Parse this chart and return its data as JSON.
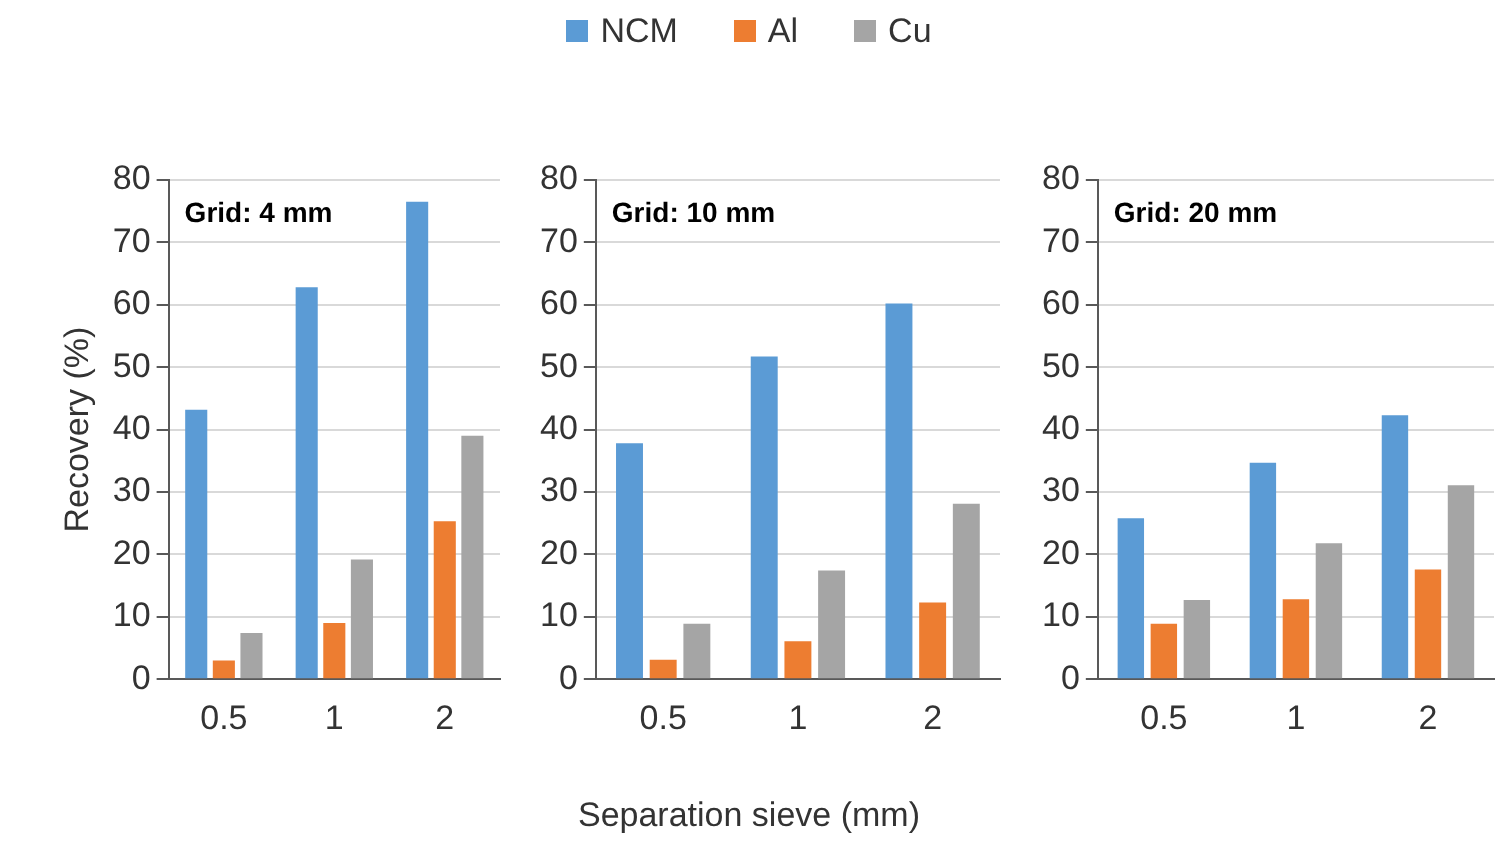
{
  "chart_data": [
    {
      "type": "bar",
      "ylabel": "Recovery (%)",
      "annotations": [
        "Grid: 4 mm"
      ],
      "categories": [
        "0.5",
        "1",
        "2"
      ],
      "ylim": [
        0,
        80
      ],
      "yticks": [
        0,
        10,
        20,
        30,
        40,
        50,
        60,
        70,
        80
      ],
      "grid": "y",
      "legend": "top",
      "series": [
        {
          "name": "NCM",
          "color": "#5b9bd5",
          "values": [
            43.2,
            62.8,
            76.5
          ]
        },
        {
          "name": "Al",
          "color": "#ed7d31",
          "values": [
            3,
            9,
            25.3
          ]
        },
        {
          "name": "Cu",
          "color": "#a5a5a5",
          "values": [
            7.4,
            19.2,
            39
          ]
        }
      ]
    },
    {
      "type": "bar",
      "xlabel": "Separation sieve (mm)",
      "annotations": [
        "Grid: 10 mm"
      ],
      "categories": [
        "0.5",
        "1",
        "2"
      ],
      "ylim": [
        0,
        80
      ],
      "yticks": [
        0,
        10,
        20,
        30,
        40,
        50,
        60,
        70,
        80
      ],
      "grid": "y",
      "series": [
        {
          "color": "#5b9bd5",
          "values": [
            37.8,
            51.7,
            60.2
          ]
        },
        {
          "color": "#ed7d31",
          "values": [
            3.1,
            6.1,
            12.3
          ]
        },
        {
          "color": "#a5a5a5",
          "values": [
            8.9,
            17.4,
            28.1
          ]
        }
      ]
    },
    {
      "type": "bar",
      "annotations": [
        "Grid: 20 mm"
      ],
      "categories": [
        "0.5",
        "1",
        "2"
      ],
      "ylim": [
        0,
        80
      ],
      "yticks": [
        0,
        10,
        20,
        30,
        40,
        50,
        60,
        70,
        80
      ],
      "grid": "y",
      "series": [
        {
          "color": "#5b9bd5",
          "values": [
            25.8,
            34.7,
            42.3
          ]
        },
        {
          "color": "#ed7d31",
          "values": [
            8.9,
            12.8,
            17.6
          ]
        },
        {
          "color": "#a5a5a5",
          "values": [
            12.7,
            21.8,
            31.1
          ]
        }
      ]
    }
  ]
}
